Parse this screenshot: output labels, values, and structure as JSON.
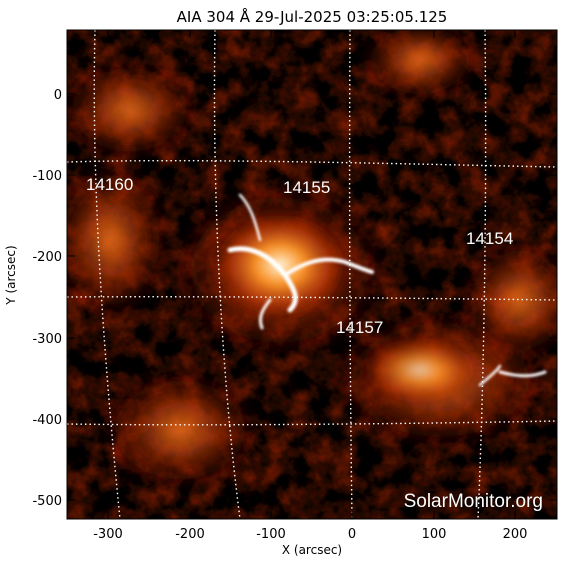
{
  "title": "AIA 304 Å 29-Jul-2025 03:25:05.125",
  "xlabel": "X (arcsec)",
  "ylabel": "Y (arcsec)",
  "xticks": [
    "-300",
    "-200",
    "-100",
    "0",
    "100",
    "200"
  ],
  "yticks": [
    "0",
    "-100",
    "-200",
    "-300",
    "-400",
    "-500"
  ],
  "regions": [
    {
      "id": "14160",
      "label": "14160"
    },
    {
      "id": "14155",
      "label": "14155"
    },
    {
      "id": "14154",
      "label": "14154"
    },
    {
      "id": "14157",
      "label": "14157"
    }
  ],
  "watermark": "SolarMonitor.org",
  "colors": {
    "sun_dark": "#000000",
    "sun_mid": "#b23008",
    "sun_bright": "#ffffff",
    "grid": "#ffffff"
  }
}
